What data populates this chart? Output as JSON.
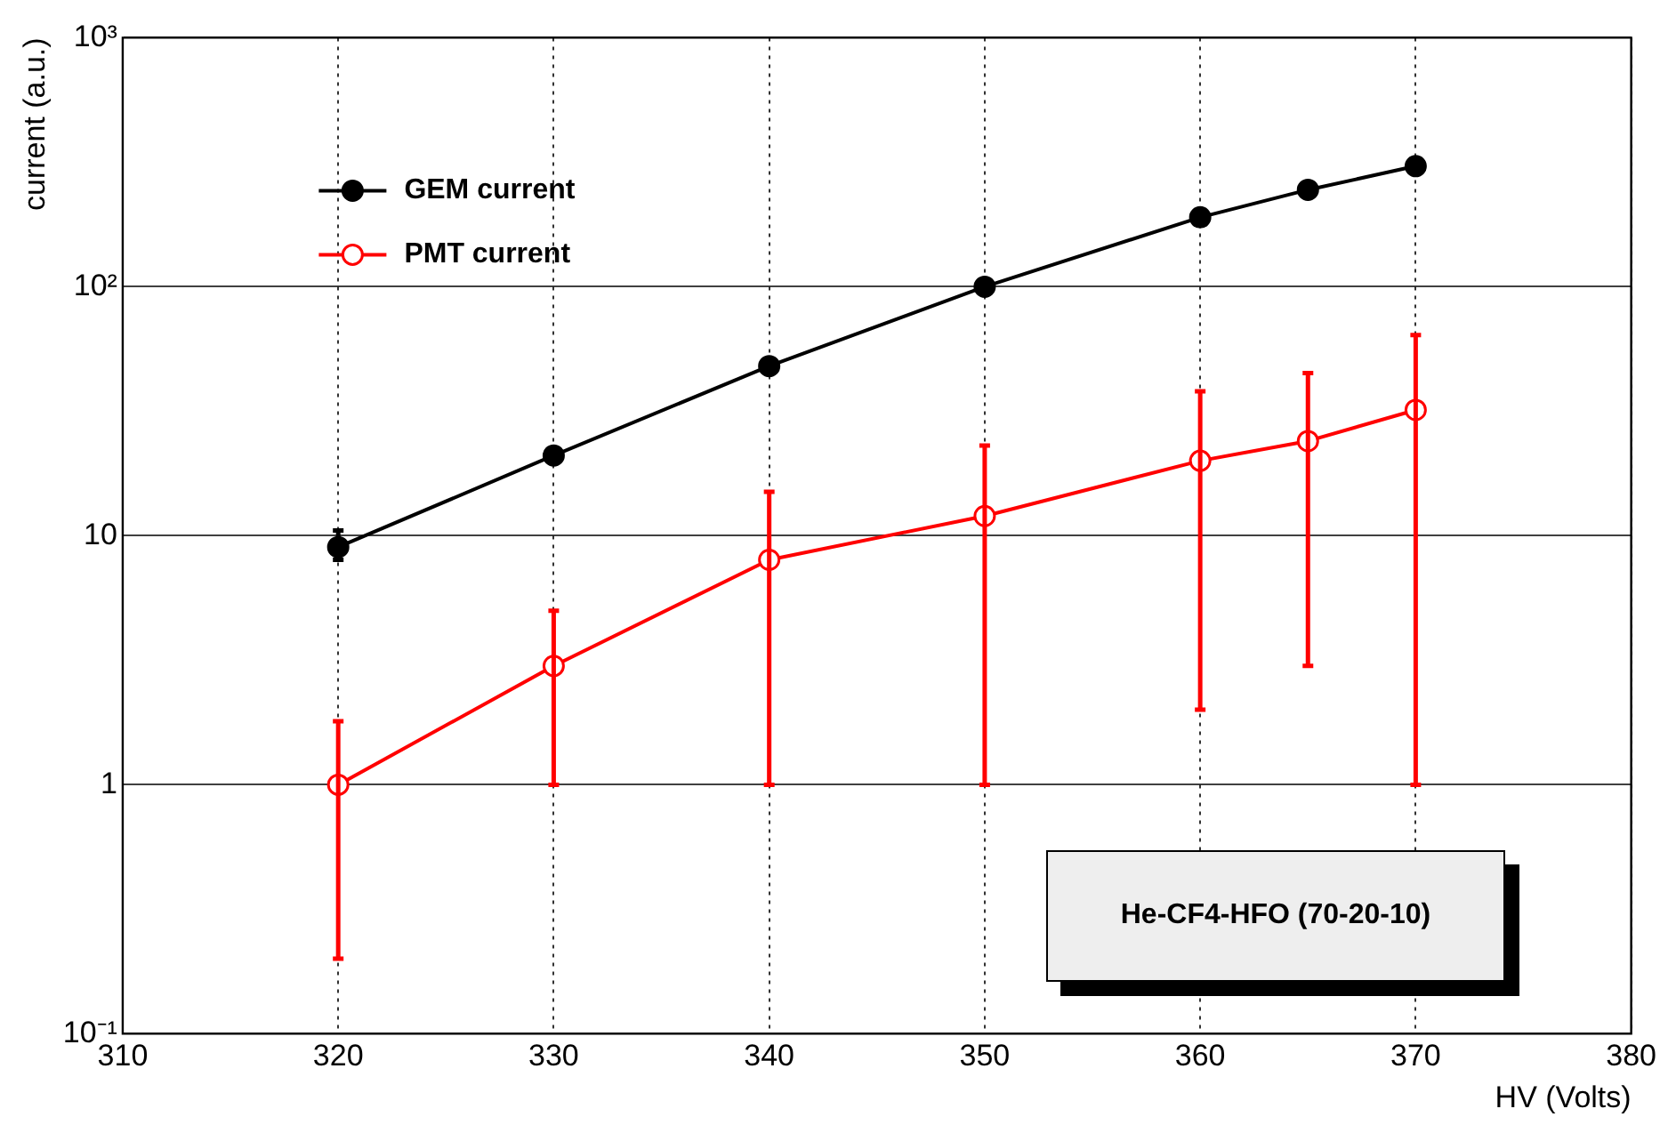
{
  "chart_data": {
    "type": "line",
    "xlabel": "HV (Volts)",
    "ylabel": "current (a.u.)",
    "log": "y",
    "grid": true,
    "legend": "top left",
    "marker": "circle",
    "line_style": "solid",
    "xlim": [
      310,
      380
    ],
    "xticks": [
      310,
      320,
      330,
      340,
      350,
      360,
      370,
      380
    ],
    "ylim": [
      0.1,
      1000
    ],
    "yticks": [
      {
        "value": 0.1,
        "label": "10⁻¹"
      },
      1,
      10,
      {
        "value": 100,
        "label": "10²"
      },
      {
        "value": 1000,
        "label": "10³"
      }
    ],
    "annotations": [
      "He-CF4-HFO (70-20-10)"
    ],
    "series": [
      {
        "name": "GEM current",
        "color": "#000000",
        "x": [
          320,
          330,
          340,
          350,
          360,
          365,
          370
        ],
        "values": [
          9,
          21,
          48,
          100,
          190,
          245,
          305
        ],
        "errors": [
          [
            8,
            10.5
          ],
          null,
          null,
          null,
          null,
          null,
          null
        ]
      },
      {
        "name": "PMT current",
        "color": "#ff0000",
        "x": [
          320,
          330,
          340,
          350,
          360,
          365,
          370
        ],
        "values": [
          1,
          3,
          8,
          12,
          20,
          24,
          32
        ],
        "errors": [
          [
            0.2,
            1.8
          ],
          [
            1,
            5
          ],
          [
            1,
            15
          ],
          [
            1,
            23
          ],
          [
            2,
            38
          ],
          [
            3,
            45
          ],
          [
            1,
            64
          ]
        ]
      }
    ]
  }
}
